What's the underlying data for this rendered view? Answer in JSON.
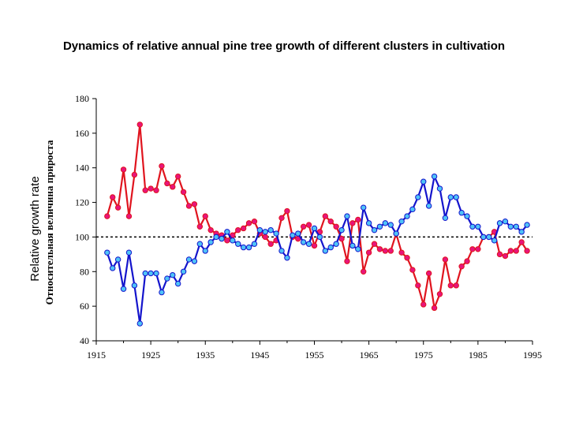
{
  "chart_data": {
    "type": "line",
    "title": "Dynamics of relative annual pine tree growth of different clusters in cultivation",
    "ylabel": "Relative growth rate",
    "ylabel_ru": "Относительная величина прироста",
    "xlabel": "",
    "xlim": [
      1915,
      1995
    ],
    "ylim": [
      40,
      180
    ],
    "x_ticks": [
      1915,
      1925,
      1935,
      1945,
      1955,
      1965,
      1975,
      1985,
      1995
    ],
    "y_ticks": [
      40,
      60,
      80,
      100,
      120,
      140,
      160,
      180
    ],
    "reference_line": 100,
    "grid": false,
    "series": [
      {
        "color": "#e0141e",
        "marker": "#e8157a",
        "x": [
          1917,
          1918,
          1919,
          1920,
          1921,
          1922,
          1923,
          1924,
          1925,
          1926,
          1927,
          1928,
          1929,
          1930,
          1931,
          1932,
          1933,
          1934,
          1935,
          1936,
          1937,
          1938,
          1939,
          1940,
          1941,
          1942,
          1943,
          1944,
          1945,
          1946,
          1947,
          1948,
          1949,
          1950,
          1951,
          1952,
          1953,
          1954,
          1955,
          1956,
          1957,
          1958,
          1959,
          1960,
          1961,
          1962,
          1963,
          1964,
          1965,
          1966,
          1967,
          1968,
          1969,
          1970,
          1971,
          1972,
          1973,
          1974,
          1975,
          1976,
          1977,
          1978,
          1979,
          1980,
          1981,
          1982,
          1983,
          1984,
          1985,
          1986,
          1987,
          1988,
          1989,
          1990,
          1991,
          1992,
          1993,
          1994
        ],
        "y": [
          112,
          123,
          117,
          139,
          112,
          136,
          165,
          127,
          128,
          127,
          141,
          131,
          129,
          135,
          126,
          118,
          119,
          106,
          112,
          104,
          102,
          101,
          98,
          101,
          104,
          105,
          108,
          109,
          102,
          100,
          96,
          98,
          111,
          115,
          100,
          99,
          106,
          107,
          95,
          103,
          112,
          109,
          106,
          99,
          86,
          108,
          110,
          80,
          91,
          96,
          93,
          92,
          92,
          102,
          91,
          88,
          81,
          72,
          61,
          79,
          59,
          67,
          87,
          72,
          72,
          83,
          86,
          93,
          93,
          100,
          100,
          103,
          90,
          89,
          92,
          92,
          97,
          92
        ]
      },
      {
        "color": "#1414cc",
        "marker": "#4fc3f7",
        "x": [
          1917,
          1918,
          1919,
          1920,
          1921,
          1922,
          1923,
          1924,
          1925,
          1926,
          1927,
          1928,
          1929,
          1930,
          1931,
          1932,
          1933,
          1934,
          1935,
          1936,
          1937,
          1938,
          1939,
          1940,
          1941,
          1942,
          1943,
          1944,
          1945,
          1946,
          1947,
          1948,
          1949,
          1950,
          1951,
          1952,
          1953,
          1954,
          1955,
          1956,
          1957,
          1958,
          1959,
          1960,
          1961,
          1962,
          1963,
          1964,
          1965,
          1966,
          1967,
          1968,
          1969,
          1970,
          1971,
          1972,
          1973,
          1974,
          1975,
          1976,
          1977,
          1978,
          1979,
          1980,
          1981,
          1982,
          1983,
          1984,
          1985,
          1986,
          1987,
          1988,
          1989,
          1990,
          1991,
          1992,
          1993,
          1994
        ],
        "y": [
          91,
          82,
          87,
          70,
          91,
          72,
          50,
          79,
          79,
          79,
          68,
          76,
          78,
          73,
          80,
          87,
          86,
          96,
          92,
          97,
          100,
          99,
          103,
          98,
          96,
          94,
          94,
          96,
          104,
          103,
          104,
          102,
          92,
          88,
          101,
          102,
          97,
          96,
          105,
          100,
          92,
          94,
          96,
          104,
          112,
          95,
          93,
          117,
          108,
          104,
          106,
          108,
          107,
          102,
          109,
          112,
          116,
          123,
          132,
          118,
          135,
          128,
          111,
          123,
          123,
          114,
          112,
          106,
          106,
          100,
          100,
          98,
          108,
          109,
          106,
          106,
          103,
          107
        ]
      }
    ]
  }
}
